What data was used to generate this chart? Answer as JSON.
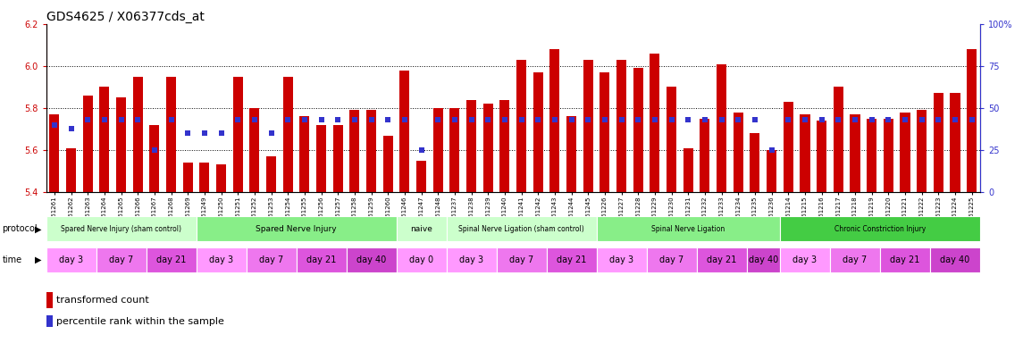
{
  "title": "GDS4625 / X06377cds_at",
  "ylim_left": [
    5.4,
    6.2
  ],
  "ylim_right": [
    0,
    100
  ],
  "yticks_left": [
    5.4,
    5.6,
    5.8,
    6.0,
    6.2
  ],
  "yticks_right": [
    0,
    25,
    50,
    75,
    100
  ],
  "ytick_labels_right": [
    "0",
    "25",
    "50",
    "75",
    "100%"
  ],
  "grid_lines": [
    5.6,
    5.8,
    6.0
  ],
  "bar_color": "#cc0000",
  "dot_color": "#3333cc",
  "bar_width": 0.6,
  "samples": [
    "GSM761261",
    "GSM761262",
    "GSM761263",
    "GSM761264",
    "GSM761265",
    "GSM761266",
    "GSM761267",
    "GSM761268",
    "GSM761269",
    "GSM761249",
    "GSM761250",
    "GSM761251",
    "GSM761252",
    "GSM761253",
    "GSM761254",
    "GSM761255",
    "GSM761256",
    "GSM761257",
    "GSM761258",
    "GSM761259",
    "GSM761260",
    "GSM761246",
    "GSM761247",
    "GSM761248",
    "GSM761237",
    "GSM761238",
    "GSM761239",
    "GSM761240",
    "GSM761241",
    "GSM761242",
    "GSM761243",
    "GSM761244",
    "GSM761245",
    "GSM761226",
    "GSM761227",
    "GSM761228",
    "GSM761229",
    "GSM761230",
    "GSM761231",
    "GSM761232",
    "GSM761233",
    "GSM761234",
    "GSM761235",
    "GSM761236",
    "GSM761214",
    "GSM761215",
    "GSM761216",
    "GSM761217",
    "GSM761218",
    "GSM761219",
    "GSM761220",
    "GSM761221",
    "GSM761222",
    "GSM761223",
    "GSM761224",
    "GSM761225"
  ],
  "bar_values": [
    5.77,
    5.61,
    5.86,
    5.9,
    5.85,
    5.95,
    5.72,
    5.95,
    5.54,
    5.54,
    5.53,
    5.95,
    5.8,
    5.57,
    5.95,
    5.76,
    5.72,
    5.72,
    5.79,
    5.79,
    5.67,
    5.98,
    5.55,
    5.8,
    5.8,
    5.84,
    5.82,
    5.84,
    6.03,
    5.97,
    6.08,
    5.76,
    6.03,
    5.97,
    6.03,
    5.99,
    6.06,
    5.9,
    5.61,
    5.75,
    6.01,
    5.78,
    5.68,
    5.6,
    5.83,
    5.77,
    5.74,
    5.9,
    5.77,
    5.75,
    5.75,
    5.78,
    5.79,
    5.87,
    5.87,
    6.08
  ],
  "dot_percentiles": [
    40,
    38,
    43,
    43,
    43,
    43,
    25,
    43,
    35,
    35,
    35,
    43,
    43,
    35,
    43,
    43,
    43,
    43,
    43,
    43,
    43,
    43,
    25,
    43,
    43,
    43,
    43,
    43,
    43,
    43,
    43,
    43,
    43,
    43,
    43,
    43,
    43,
    43,
    43,
    43,
    43,
    43,
    43,
    25,
    43,
    43,
    43,
    43,
    43,
    43,
    43,
    43,
    43,
    43,
    43,
    43
  ],
  "protocols": [
    {
      "label": "Spared Nerve Injury (sham control)",
      "start": 0,
      "end": 9,
      "color": "#ccffcc"
    },
    {
      "label": "Spared Nerve Injury",
      "start": 9,
      "end": 21,
      "color": "#88ee88"
    },
    {
      "label": "naive",
      "start": 21,
      "end": 24,
      "color": "#ccffcc"
    },
    {
      "label": "Spinal Nerve Ligation (sham control)",
      "start": 24,
      "end": 33,
      "color": "#ccffcc"
    },
    {
      "label": "Spinal Nerve Ligation",
      "start": 33,
      "end": 44,
      "color": "#88ee88"
    },
    {
      "label": "Chronic Constriction Injury",
      "start": 44,
      "end": 56,
      "color": "#44cc44"
    }
  ],
  "time_groups": [
    {
      "label": "day 3",
      "start": 0,
      "end": 3
    },
    {
      "label": "day 7",
      "start": 3,
      "end": 6
    },
    {
      "label": "day 21",
      "start": 6,
      "end": 9
    },
    {
      "label": "day 3",
      "start": 9,
      "end": 12
    },
    {
      "label": "day 7",
      "start": 12,
      "end": 15
    },
    {
      "label": "day 21",
      "start": 15,
      "end": 18
    },
    {
      "label": "day 40",
      "start": 18,
      "end": 21
    },
    {
      "label": "day 0",
      "start": 21,
      "end": 24
    },
    {
      "label": "day 3",
      "start": 24,
      "end": 27
    },
    {
      "label": "day 7",
      "start": 27,
      "end": 30
    },
    {
      "label": "day 21",
      "start": 30,
      "end": 33
    },
    {
      "label": "day 3",
      "start": 33,
      "end": 36
    },
    {
      "label": "day 7",
      "start": 36,
      "end": 39
    },
    {
      "label": "day 21",
      "start": 39,
      "end": 42
    },
    {
      "label": "day 40",
      "start": 42,
      "end": 44
    },
    {
      "label": "day 3",
      "start": 44,
      "end": 47
    },
    {
      "label": "day 7",
      "start": 47,
      "end": 50
    },
    {
      "label": "day 21",
      "start": 50,
      "end": 53
    },
    {
      "label": "day 40",
      "start": 53,
      "end": 56
    }
  ],
  "time_colors": {
    "day 0": "#ff99ff",
    "day 3": "#ff99ff",
    "day 7": "#ee77ee",
    "day 21": "#dd55dd",
    "day 40": "#cc44cc"
  },
  "left_axis_color": "#cc0000",
  "right_axis_color": "#3333cc",
  "bg_color": "#ffffff",
  "title_fontsize": 10,
  "tick_fontsize": 7,
  "sample_fontsize": 5,
  "row_fontsize": 7,
  "legend_fontsize": 8
}
